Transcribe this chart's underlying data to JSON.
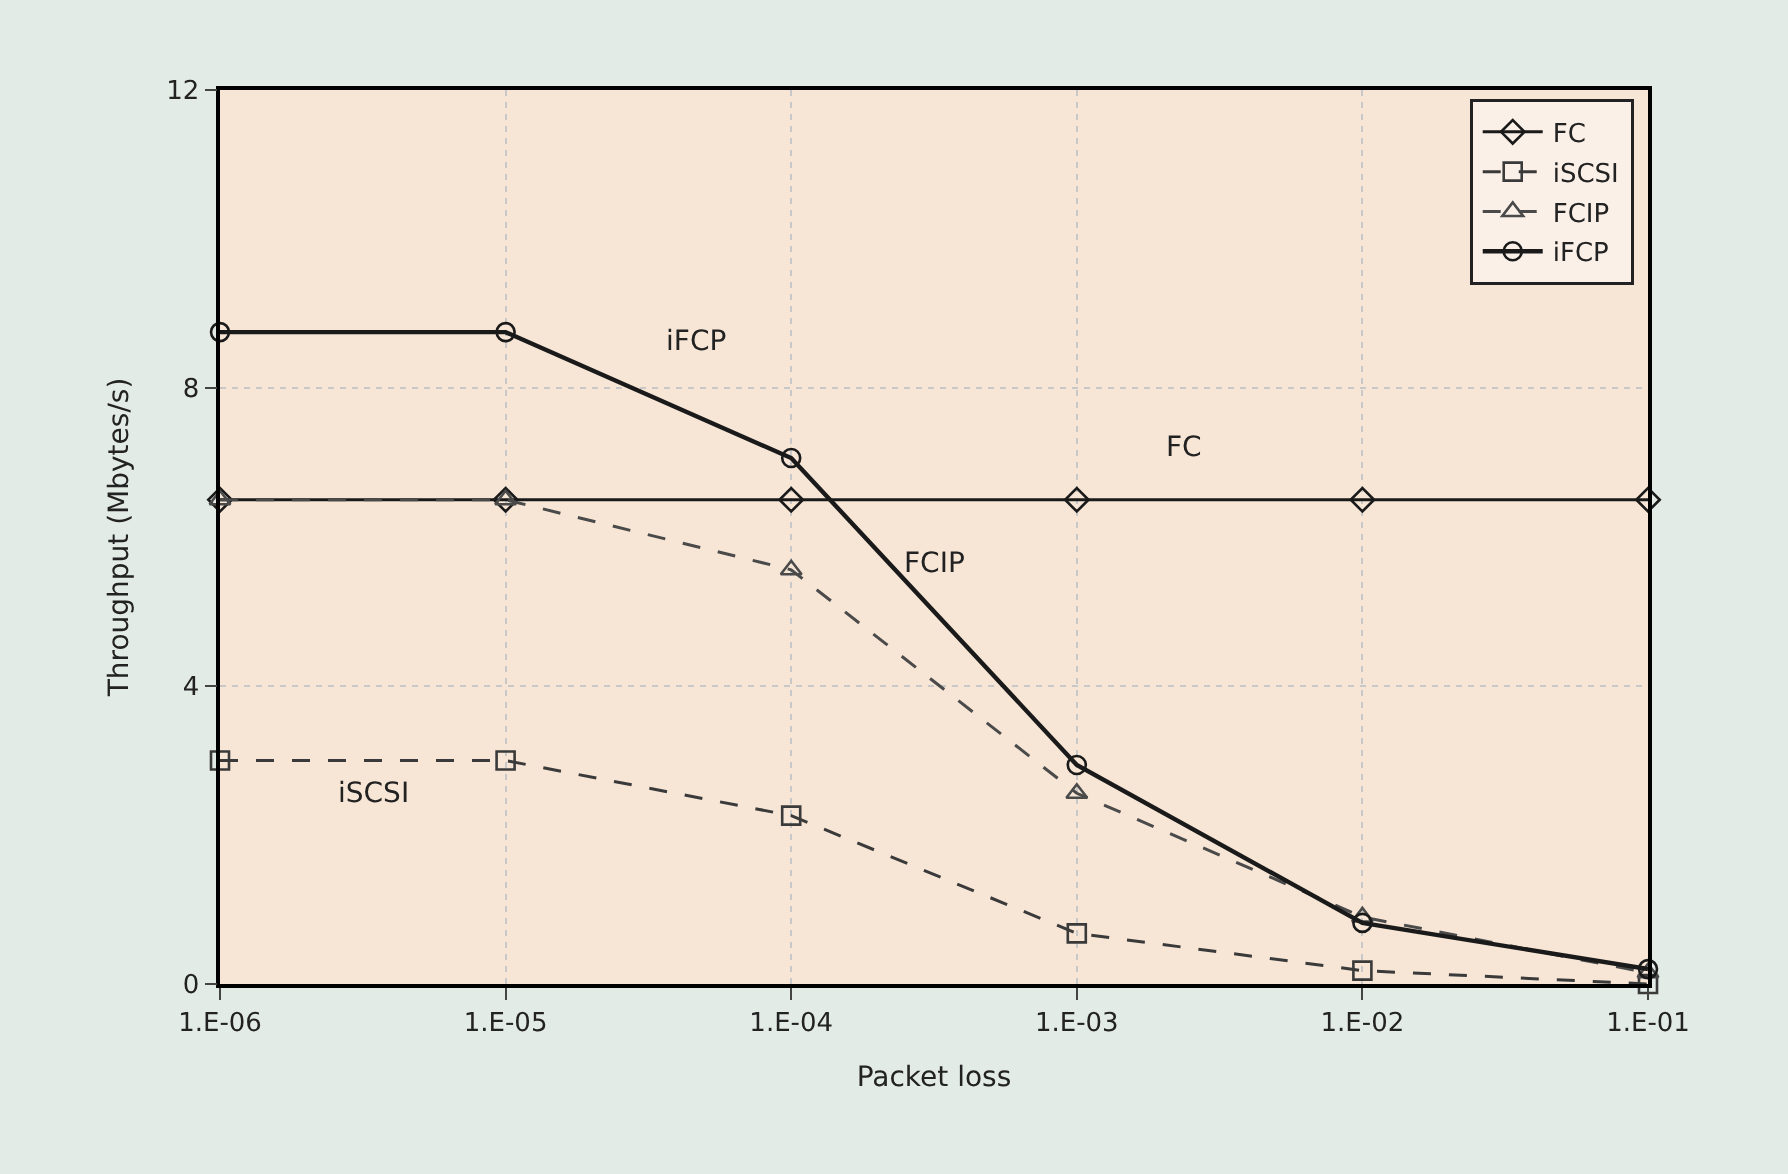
{
  "chart_data": {
    "type": "line",
    "xlabel": "Packet loss",
    "ylabel": "Throughput (Mbytes/s)",
    "categories": [
      "1.E-06",
      "1.E-05",
      "1.E-04",
      "1.E-03",
      "1.E-02",
      "1.E-01"
    ],
    "series": [
      {
        "name": "FC",
        "color": "#1a1a1a",
        "marker": "diamond",
        "line_style": "solid",
        "values": [
          6.5,
          6.5,
          6.5,
          6.5,
          6.5,
          6.5
        ]
      },
      {
        "name": "iSCSI",
        "color": "#3a3a3a",
        "marker": "square",
        "line_style": "dashed",
        "values": [
          3.0,
          3.0,
          2.26,
          0.68,
          0.18,
          0
        ]
      },
      {
        "name": "FCIP",
        "color": "#4a4a4a",
        "marker": "triangle",
        "line_style": "dashed",
        "values": [
          6.5,
          6.5,
          5.56,
          2.56,
          0.9,
          0.15
        ]
      },
      {
        "name": "iFCP",
        "color": "#1a1a1a",
        "marker": "circle",
        "line_style": "solid",
        "values": [
          8.75,
          8.75,
          7.06,
          2.94,
          0.82,
          0.2
        ]
      }
    ],
    "ylim": [
      0,
      12
    ],
    "yticks": [
      0,
      4,
      8,
      12
    ],
    "grid": true,
    "legend": "top right",
    "annotations": [
      "iFCP",
      "FCIP",
      "FC",
      "iSCSI"
    ]
  }
}
